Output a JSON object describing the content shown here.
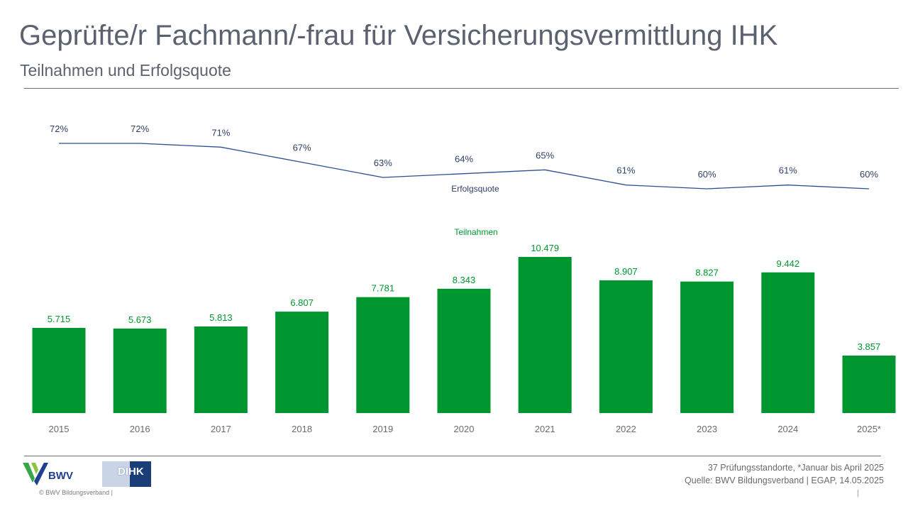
{
  "header": {
    "title": "Geprüfte/r Fachmann/-frau für Versicherungsvermittlung IHK",
    "subtitle": "Teilnahmen und Erfolgsquote"
  },
  "chart_data": {
    "type": "bar",
    "categories": [
      "2015",
      "2016",
      "2017",
      "2018",
      "2019",
      "2020",
      "2021",
      "2022",
      "2023",
      "2024",
      "2025*"
    ],
    "series": [
      {
        "name": "Teilnahmen",
        "type": "bar",
        "values": [
          5715,
          5673,
          5813,
          6807,
          7781,
          8343,
          10479,
          8907,
          8827,
          9442,
          3857
        ],
        "labels": [
          "5.715",
          "5.673",
          "5.813",
          "6.807",
          "7.781",
          "8.343",
          "10.479",
          "8.907",
          "8.827",
          "9.442",
          "3.857"
        ],
        "color": "#00962f"
      },
      {
        "name": "Erfolgsquote",
        "type": "line",
        "values": [
          72,
          72,
          71,
          67,
          63,
          64,
          65,
          61,
          60,
          61,
          60
        ],
        "labels": [
          "72%",
          "72%",
          "71%",
          "67%",
          "63%",
          "64%",
          "65%",
          "61%",
          "60%",
          "61%",
          "60%"
        ],
        "color": "#2b4f8f"
      }
    ],
    "bar_ylim": [
      0,
      10479
    ],
    "line_ylim": [
      60,
      72
    ],
    "grid": false
  },
  "footer": {
    "note_line1": "37 Prüfungsstandorte, *Januar bis April 2025",
    "note_line2": "Quelle: BWV Bildungsverband | EGAP, 14.05.2025",
    "copyright": "©  BWV Bildungsverband  |",
    "pipe": "|",
    "bwv_logo_text": "BWV",
    "dihk_logo_text": "DIHK",
    "colors": {
      "bar": "#00962f",
      "line": "#2b4f8f",
      "text": "#5a6270"
    }
  }
}
